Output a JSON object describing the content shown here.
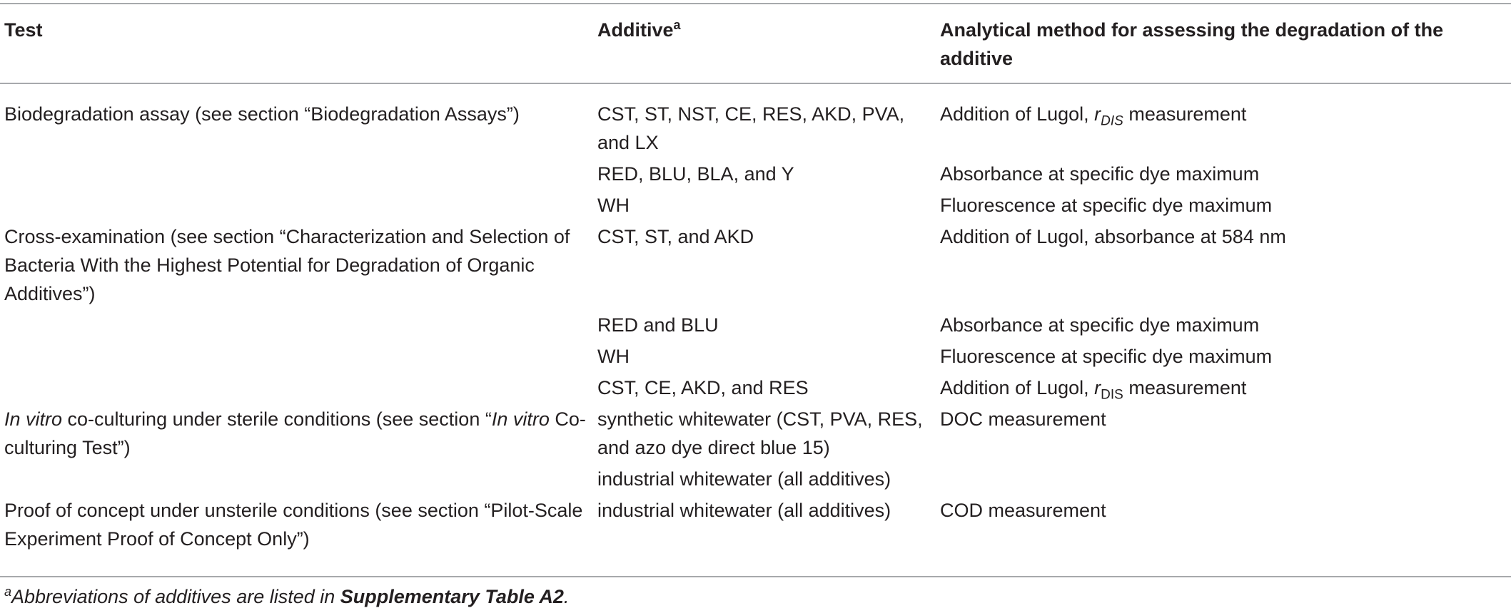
{
  "table": {
    "headers": {
      "test": "Test",
      "additive": "Additive",
      "additive_mark": "a",
      "method": "Analytical method for assessing the degradation of the additive"
    },
    "rows": [
      {
        "test_pre": "Biodegradation assay (see section “Biodegradation Assays”)",
        "additive": "CST, ST, NST, CE, RES, AKD, PVA, and LX",
        "method_pre": "Addition of Lugol, ",
        "method_var": "r",
        "method_sub": "DIS",
        "method_post": " measurement"
      },
      {
        "additive": "RED, BLU, BLA, and Y",
        "method_pre": "Absorbance at specific dye maximum"
      },
      {
        "additive": "WH",
        "method_pre": "Fluorescence at specific dye maximum"
      },
      {
        "test_pre": "Cross-examination (see section “Characterization and Selection of Bacteria With the Highest Potential for Degradation of Organic Additives”)",
        "additive": "CST, ST, and AKD",
        "method_pre": "Addition of Lugol, absorbance at 584 nm"
      },
      {
        "additive": "RED and BLU",
        "method_pre": "Absorbance at specific dye maximum"
      },
      {
        "additive": "WH",
        "method_pre": "Fluorescence at specific dye maximum"
      },
      {
        "additive": "CST, CE, AKD, and RES",
        "method_pre": "Addition of Lugol, ",
        "method_var": "r",
        "method_sub": "DIS",
        "method_post": " measurement"
      },
      {
        "test_it1": "In vitro",
        "test_pre": " co-culturing under sterile conditions (see section “",
        "test_it2": "In vitro",
        "test_post": " Co-culturing Test”)",
        "additive": "synthetic whitewater (CST, PVA, RES, and azo dye direct blue 15)",
        "method_pre": "DOC measurement"
      },
      {
        "additive": "industrial whitewater (all additives)"
      },
      {
        "test_pre": "Proof of concept under unsterile conditions (see section “Pilot-Scale Experiment Proof of Concept Only”)",
        "additive": "industrial whitewater (all additives)",
        "method_pre": "COD measurement"
      }
    ]
  },
  "footnote": {
    "mark": "a",
    "text": "Abbreviations of additives are listed in ",
    "bold": "Supplementary Table A2",
    "end": "."
  }
}
